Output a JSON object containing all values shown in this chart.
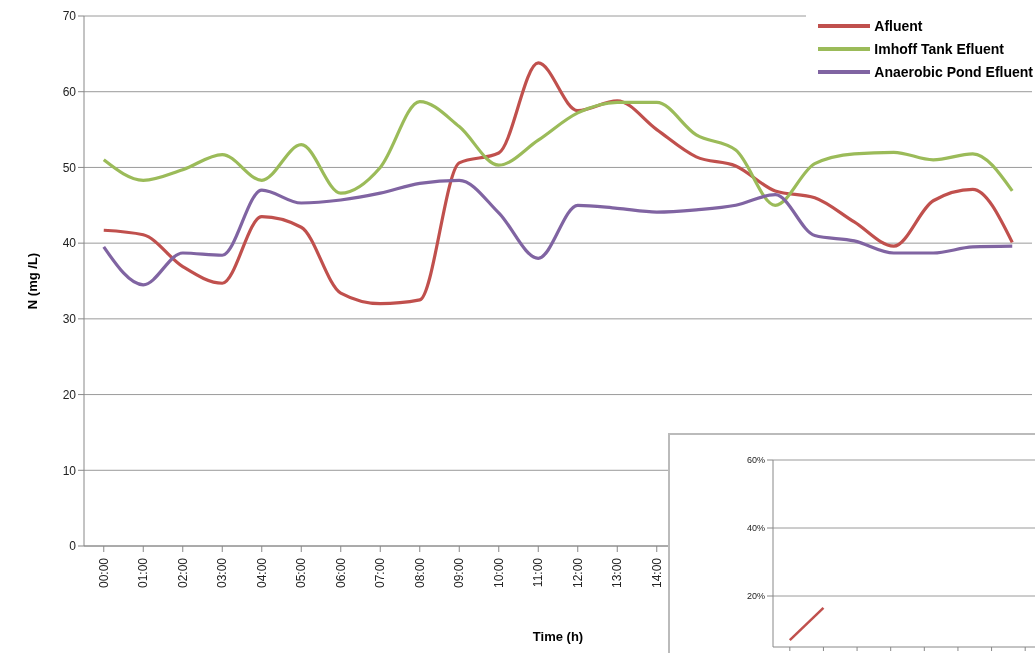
{
  "chart_data": [
    {
      "type": "line",
      "xlabel": "Time (h)",
      "ylabel": "N (mg /L)",
      "categories": [
        "00:00",
        "01:00",
        "02:00",
        "03:00",
        "04:00",
        "05:00",
        "06:00",
        "07:00",
        "08:00",
        "09:00",
        "10:00",
        "11:00",
        "12:00",
        "13:00",
        "14:00",
        null,
        null,
        null,
        null,
        null,
        null,
        null,
        null,
        null
      ],
      "series": [
        {
          "name": "Afluent",
          "color": "#c0504d",
          "values": [
            41.7,
            41.1,
            36.9,
            34.7,
            43.5,
            42.1,
            33.4,
            32,
            32.5,
            50.6,
            51.9,
            63.8,
            57.5,
            58.8,
            55,
            51.4,
            50.2,
            46.9,
            46,
            42.8,
            39.6,
            45.6,
            47.1,
            40.1
          ]
        },
        {
          "name": "Imhoff Tank Efluent",
          "color": "#9bbb59",
          "values": [
            51,
            48.3,
            49.7,
            51.7,
            48.3,
            53,
            46.6,
            50,
            58.7,
            55.4,
            50.3,
            53.6,
            57.2,
            58.6,
            58.6,
            54.3,
            52.3,
            45,
            50.5,
            51.8,
            52,
            51,
            51.8,
            46.9
          ]
        },
        {
          "name": "Anaerobic Pond Efluent",
          "color": "#8064a2",
          "values": [
            39.5,
            34.5,
            38.7,
            38.4,
            47,
            45.3,
            45.7,
            46.6,
            47.9,
            48.3,
            44,
            38,
            45,
            44.6,
            44.1,
            44.4,
            45,
            46.4,
            41,
            40.3,
            38.7,
            38.7,
            39.5,
            39.6
          ]
        }
      ],
      "ylim": [
        0,
        70
      ],
      "yticks": [
        0,
        10,
        20,
        30,
        40,
        50,
        60,
        70
      ],
      "grid": "y",
      "legend": "top right",
      "marker": "none",
      "line_style": "solid"
    },
    {
      "type": "line",
      "categories": [
        null,
        null,
        null,
        null,
        null,
        null,
        null,
        null
      ],
      "series": [
        {
          "color": "#c0504d",
          "values": [
            7,
            16.5,
            null,
            null,
            null,
            null,
            null,
            null
          ]
        }
      ],
      "ylim": [
        5,
        60
      ],
      "yticks": [
        {
          "value": 20,
          "label": "20%"
        },
        {
          "value": 40,
          "label": "40%"
        },
        {
          "value": 60,
          "label": "60%"
        }
      ],
      "grid": "y",
      "marker": "none",
      "line_style": "solid"
    }
  ]
}
